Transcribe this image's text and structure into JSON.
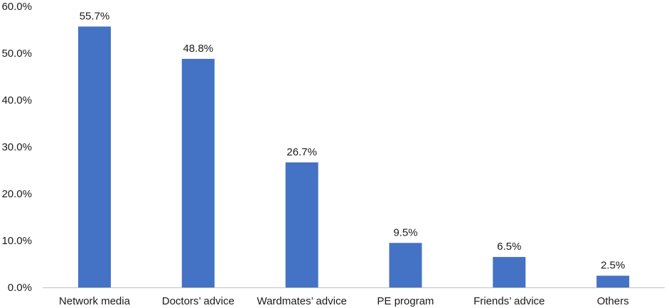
{
  "chart_data": {
    "type": "bar",
    "categories": [
      "Network media",
      "Doctors’ advice",
      "Wardmates’ advice",
      "PE program",
      "Friends’ advice",
      "Others"
    ],
    "values": [
      55.7,
      48.8,
      26.7,
      9.5,
      6.5,
      2.5
    ],
    "data_labels": [
      "55.7%",
      "48.8%",
      "26.7%",
      "9.5%",
      "6.5%",
      "2.5%"
    ],
    "title": "",
    "xlabel": "",
    "ylabel": "",
    "ylim": [
      0,
      60
    ],
    "yticks": [
      0,
      10,
      20,
      30,
      40,
      50,
      60
    ],
    "ytick_labels": [
      "0.0%",
      "10.0%",
      "20.0%",
      "30.0%",
      "40.0%",
      "50.0%",
      "60.0%"
    ],
    "grid": false,
    "legend": "none",
    "bar_color": "#4472c4"
  }
}
